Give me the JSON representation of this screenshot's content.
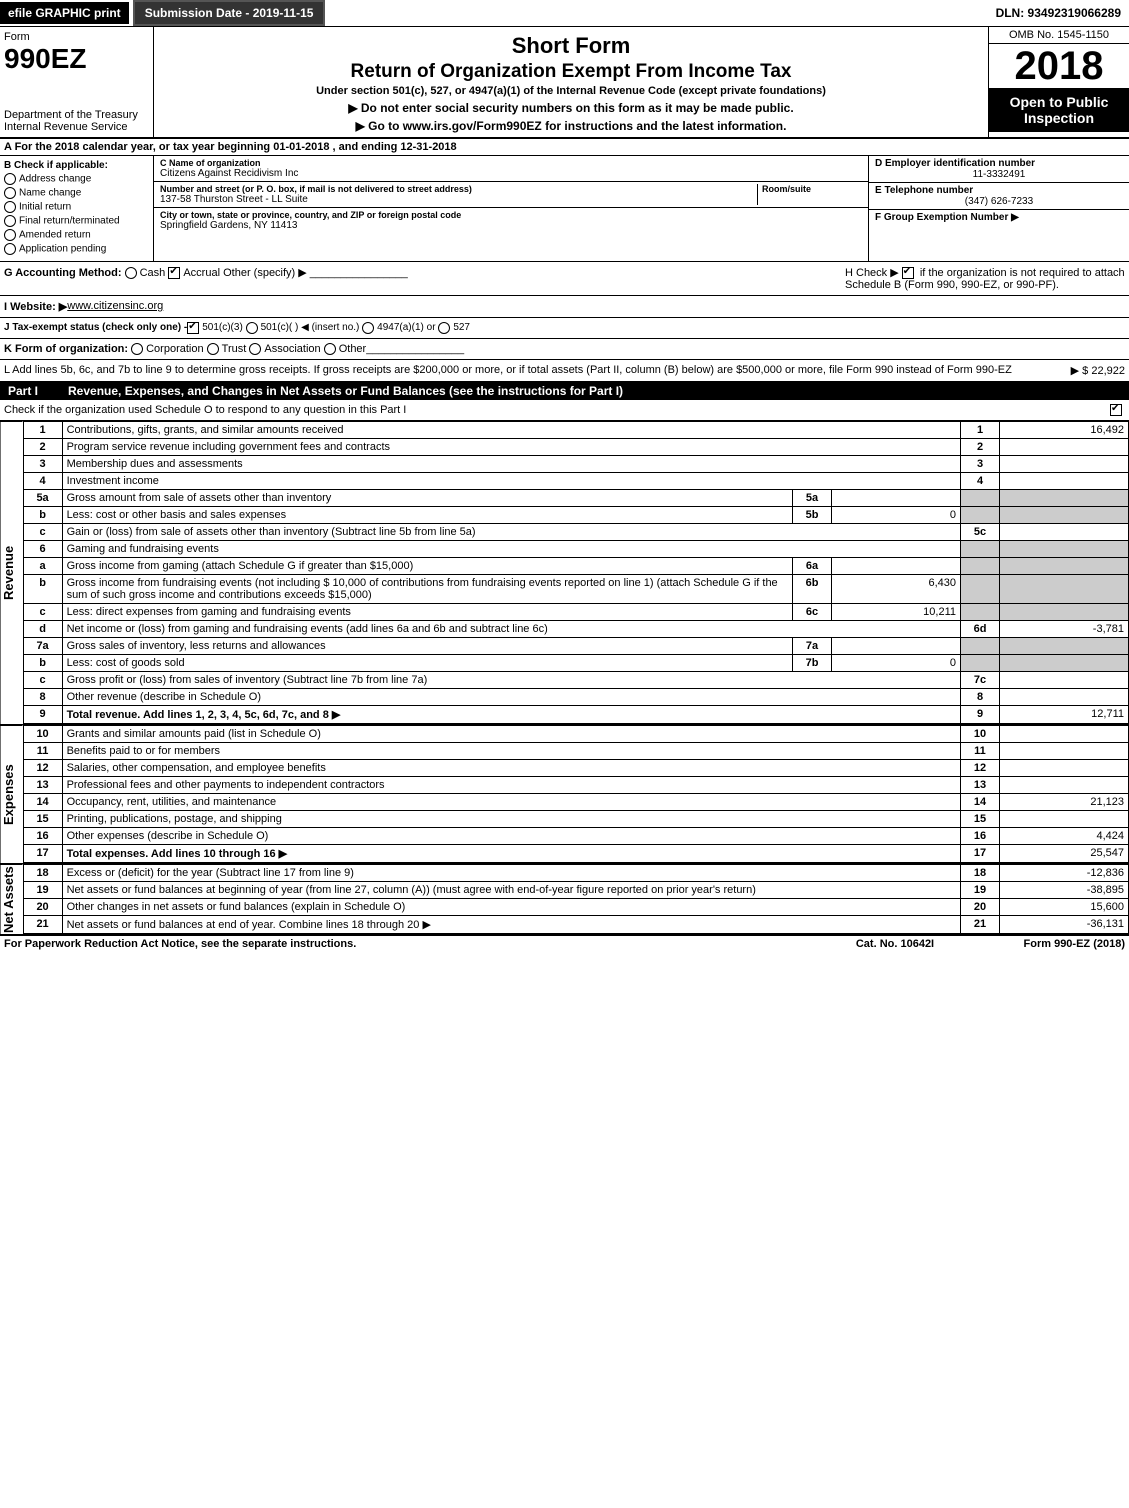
{
  "top": {
    "efile": "efile GRAPHIC print",
    "submission": "Submission Date - 2019-11-15",
    "dln": "DLN: 93492319066289"
  },
  "header": {
    "form_label": "Form",
    "form_name": "990EZ",
    "dept": "Department of the Treasury",
    "irs": "Internal Revenue Service",
    "short_form": "Short Form",
    "title": "Return of Organization Exempt From Income Tax",
    "subtitle": "Under section 501(c), 527, or 4947(a)(1) of the Internal Revenue Code (except private foundations)",
    "warning": "▶ Do not enter social security numbers on this form as it may be made public.",
    "instructions_prefix": "▶ Go to ",
    "instructions_link": "www.irs.gov/Form990EZ",
    "instructions_suffix": " for instructions and the latest information.",
    "omb": "OMB No. 1545-1150",
    "year": "2018",
    "open": "Open to Public Inspection"
  },
  "period": {
    "label_a": "A For the 2018 calendar year, or tax year beginning ",
    "begin": "01-01-2018",
    "mid": " , and ending ",
    "end": "12-31-2018"
  },
  "section_b": {
    "header": "B Check if applicable:",
    "items": [
      "Address change",
      "Name change",
      "Initial return",
      "Final return/terminated",
      "Amended return",
      "Application pending"
    ]
  },
  "section_c": {
    "name_label": "C Name of organization",
    "name": "Citizens Against Recidivism Inc",
    "addr_label": "Number and street (or P. O. box, if mail is not delivered to street address)",
    "addr": "137-58 Thurston Street - LL Suite",
    "room_label": "Room/suite",
    "city_label": "City or town, state or province, country, and ZIP or foreign postal code",
    "city": "Springfield Gardens, NY  11413"
  },
  "section_right": {
    "d_label": "D Employer identification number",
    "d_value": "11-3332491",
    "e_label": "E Telephone number",
    "e_value": "(347) 626-7233",
    "f_label": "F Group Exemption Number ▶"
  },
  "meta": {
    "g_label": "G Accounting Method:",
    "g_cash": "Cash",
    "g_accrual": "Accrual",
    "g_other": "Other (specify) ▶",
    "h_label": "H  Check ▶",
    "h_text": " if the organization is not required to attach Schedule B (Form 990, 990-EZ, or 990-PF).",
    "i_label": "I Website: ▶",
    "i_value": "www.citizensinc.org",
    "j_label": "J Tax-exempt status (check only one) - ",
    "j_501c3": "501(c)(3)",
    "j_501c": "501(c)(  ) ◀ (insert no.)",
    "j_4947": "4947(a)(1) or",
    "j_527": "527",
    "k_label": "K Form of organization:",
    "k_opts": [
      "Corporation",
      "Trust",
      "Association",
      "Other"
    ],
    "l_text": "L Add lines 5b, 6c, and 7b to line 9 to determine gross receipts. If gross receipts are $200,000 or more, or if total assets (Part II, column (B) below) are $500,000 or more, file Form 990 instead of Form 990-EZ",
    "l_amount": "▶ $ 22,922"
  },
  "part1": {
    "header_num": "Part I",
    "header_title": "Revenue, Expenses, and Changes in Net Assets or Fund Balances (see the instructions for Part I)",
    "check_text": "Check if the organization used Schedule O to respond to any question in this Part I"
  },
  "sections": {
    "revenue": "Revenue",
    "expenses": "Expenses",
    "netassets": "Net Assets"
  },
  "lines": [
    {
      "n": "1",
      "desc": "Contributions, gifts, grants, and similar amounts received",
      "rn": "1",
      "rv": "16,492"
    },
    {
      "n": "2",
      "desc": "Program service revenue including government fees and contracts",
      "rn": "2",
      "rv": ""
    },
    {
      "n": "3",
      "desc": "Membership dues and assessments",
      "rn": "3",
      "rv": ""
    },
    {
      "n": "4",
      "desc": "Investment income",
      "rn": "4",
      "rv": ""
    },
    {
      "n": "5a",
      "desc": "Gross amount from sale of assets other than inventory",
      "mn": "5a",
      "mv": ""
    },
    {
      "n": "b",
      "desc": "Less: cost or other basis and sales expenses",
      "mn": "5b",
      "mv": "0"
    },
    {
      "n": "c",
      "desc": "Gain or (loss) from sale of assets other than inventory (Subtract line 5b from line 5a)",
      "rn": "5c",
      "rv": ""
    },
    {
      "n": "6",
      "desc": "Gaming and fundraising events"
    },
    {
      "n": "a",
      "desc": "Gross income from gaming (attach Schedule G if greater than $15,000)",
      "mn": "6a",
      "mv": ""
    },
    {
      "n": "b",
      "desc": "Gross income from fundraising events (not including $  10,000   of contributions from fundraising events reported on line 1) (attach Schedule G if the sum of such gross income and contributions exceeds $15,000)",
      "mn": "6b",
      "mv": "6,430"
    },
    {
      "n": "c",
      "desc": "Less: direct expenses from gaming and fundraising events",
      "mn": "6c",
      "mv": "10,211"
    },
    {
      "n": "d",
      "desc": "Net income or (loss) from gaming and fundraising events (add lines 6a and 6b and subtract line 6c)",
      "rn": "6d",
      "rv": "-3,781"
    },
    {
      "n": "7a",
      "desc": "Gross sales of inventory, less returns and allowances",
      "mn": "7a",
      "mv": ""
    },
    {
      "n": "b",
      "desc": "Less: cost of goods sold",
      "mn": "7b",
      "mv": "0"
    },
    {
      "n": "c",
      "desc": "Gross profit or (loss) from sales of inventory (Subtract line 7b from line 7a)",
      "rn": "7c",
      "rv": ""
    },
    {
      "n": "8",
      "desc": "Other revenue (describe in Schedule O)",
      "rn": "8",
      "rv": ""
    },
    {
      "n": "9",
      "desc": "Total revenue. Add lines 1, 2, 3, 4, 5c, 6d, 7c, and 8",
      "rn": "9",
      "rv": "12,711",
      "bold": true,
      "arrow": true
    }
  ],
  "expense_lines": [
    {
      "n": "10",
      "desc": "Grants and similar amounts paid (list in Schedule O)",
      "rn": "10",
      "rv": ""
    },
    {
      "n": "11",
      "desc": "Benefits paid to or for members",
      "rn": "11",
      "rv": ""
    },
    {
      "n": "12",
      "desc": "Salaries, other compensation, and employee benefits",
      "rn": "12",
      "rv": ""
    },
    {
      "n": "13",
      "desc": "Professional fees and other payments to independent contractors",
      "rn": "13",
      "rv": ""
    },
    {
      "n": "14",
      "desc": "Occupancy, rent, utilities, and maintenance",
      "rn": "14",
      "rv": "21,123"
    },
    {
      "n": "15",
      "desc": "Printing, publications, postage, and shipping",
      "rn": "15",
      "rv": ""
    },
    {
      "n": "16",
      "desc": "Other expenses (describe in Schedule O)",
      "rn": "16",
      "rv": "4,424"
    },
    {
      "n": "17",
      "desc": "Total expenses. Add lines 10 through 16",
      "rn": "17",
      "rv": "25,547",
      "bold": true,
      "arrow": true
    }
  ],
  "asset_lines": [
    {
      "n": "18",
      "desc": "Excess or (deficit) for the year (Subtract line 17 from line 9)",
      "rn": "18",
      "rv": "-12,836"
    },
    {
      "n": "19",
      "desc": "Net assets or fund balances at beginning of year (from line 27, column (A)) (must agree with end-of-year figure reported on prior year's return)",
      "rn": "19",
      "rv": "-38,895"
    },
    {
      "n": "20",
      "desc": "Other changes in net assets or fund balances (explain in Schedule O)",
      "rn": "20",
      "rv": "15,600"
    },
    {
      "n": "21",
      "desc": "Net assets or fund balances at end of year. Combine lines 18 through 20",
      "rn": "21",
      "rv": "-36,131",
      "arrow": true
    }
  ],
  "footer": {
    "left": "For Paperwork Reduction Act Notice, see the separate instructions.",
    "mid": "Cat. No. 10642I",
    "right": "Form 990-EZ (2018)"
  }
}
